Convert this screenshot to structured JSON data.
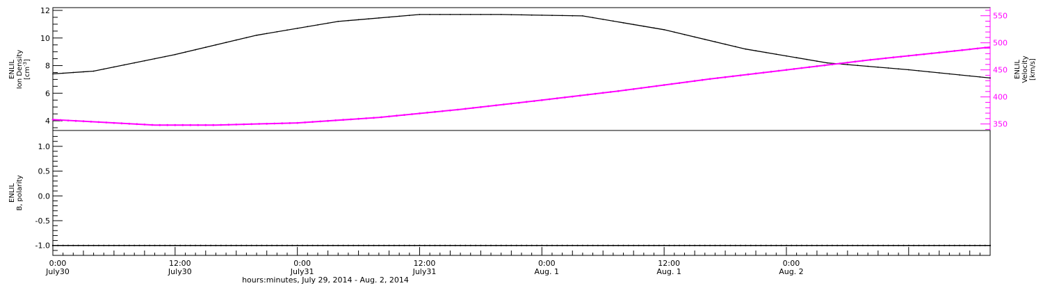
{
  "chart_data": [
    {
      "type": "line",
      "panel": "top",
      "ylabel_lines": [
        "ENLIL",
        "Ion Density",
        "[cm^-3]"
      ],
      "ylim": [
        3.3,
        12.2
      ],
      "y_ticks": [
        "4",
        "6",
        "8",
        "10",
        "12"
      ],
      "y2label_lines": [
        "ENLIL",
        "Velocity",
        "[km/s]"
      ],
      "y2lim": [
        338,
        565
      ],
      "y2_ticks": [
        "350",
        "400",
        "450",
        "500",
        "550"
      ],
      "xlim_hours": [
        0,
        92
      ],
      "series": [
        {
          "axis": "left",
          "color": "#000000",
          "x_hours": [
            0,
            4,
            12,
            20,
            28,
            36,
            44,
            52,
            60,
            68,
            76,
            84,
            92
          ],
          "values": [
            7.4,
            7.6,
            8.8,
            10.2,
            11.2,
            11.7,
            11.7,
            11.6,
            10.6,
            9.2,
            8.2,
            7.7,
            7.1
          ]
        },
        {
          "axis": "right",
          "color": "#ff00ff",
          "x_hours": [
            0,
            4,
            10,
            16,
            24,
            32,
            40,
            48,
            56,
            64,
            72,
            80,
            88,
            92
          ],
          "values": [
            358,
            354,
            348,
            348,
            352,
            362,
            377,
            394,
            412,
            432,
            450,
            468,
            484,
            492
          ]
        }
      ]
    },
    {
      "type": "line",
      "panel": "bottom",
      "ylabel_lines": [
        "ENLIL",
        "B, polarity"
      ],
      "ylim": [
        -1.2,
        1.32
      ],
      "y_ticks": [
        "1.0",
        "0.5",
        "0.0",
        "-0.5",
        "-1.0"
      ],
      "y_tick_values": [
        1.0,
        0.5,
        0.0,
        -0.5,
        -1.0
      ],
      "xlim_hours": [
        0,
        92
      ],
      "series": [
        {
          "color": "#000000",
          "x_hours": [
            0,
            92
          ],
          "values": [
            -1.0,
            -1.0
          ]
        }
      ],
      "x_ticks": [
        {
          "hour": 0,
          "time": "0:00",
          "date": "July30"
        },
        {
          "hour": 12,
          "time": "12:00",
          "date": "July30"
        },
        {
          "hour": 24,
          "time": "0:00",
          "date": "July31"
        },
        {
          "hour": 36,
          "time": "12:00",
          "date": "July31"
        },
        {
          "hour": 48,
          "time": "0:00",
          "date": "Aug. 1"
        },
        {
          "hour": 60,
          "time": "12:00",
          "date": "Aug. 1"
        },
        {
          "hour": 72,
          "time": "0:00",
          "date": "Aug. 2"
        }
      ],
      "xlabel": "hours:minutes, July 29, 2014 - Aug.  2, 2014"
    }
  ]
}
